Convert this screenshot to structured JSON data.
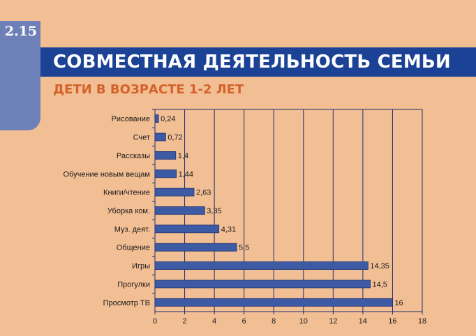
{
  "section_number": "2.15",
  "title": "СОВМЕСТНАЯ ДЕЯТЕЛЬНОСТЬ СЕМЬИ",
  "subtitle": "ДЕТИ В ВОЗРАСТЕ 1-2 ЛЕТ",
  "colors": {
    "background": "#F2BE94",
    "title_bar": "#1B4294",
    "side_tab": "#6E80B8",
    "subtitle": "#D4622A",
    "bar": "#3D5BA4",
    "grid": "#1B2F70"
  },
  "chart_data": {
    "type": "bar",
    "orientation": "horizontal",
    "categories": [
      "Рисование",
      "Счет",
      "Рассказы",
      "Обучение новым вещам",
      "Книги/чтение",
      "Уборка ком.",
      "Муз. деят.",
      "Общение",
      "Игры",
      "Прогулки",
      "Просмотр ТВ"
    ],
    "values": [
      0.24,
      0.72,
      1.4,
      1.44,
      2.63,
      3.35,
      4.31,
      5.5,
      14.35,
      14.5,
      16
    ],
    "value_labels": [
      "0,24",
      "0,72",
      "1,4",
      "1,44",
      "2,63",
      "3,35",
      "4,31",
      "5,5",
      "14,35",
      "14,5",
      "16"
    ],
    "x_ticks": [
      "0",
      "2",
      "4",
      "6",
      "8",
      "10",
      "12",
      "14",
      "16",
      "18"
    ],
    "xlim": [
      0,
      18
    ],
    "grid": "vertical",
    "legend": "none"
  }
}
